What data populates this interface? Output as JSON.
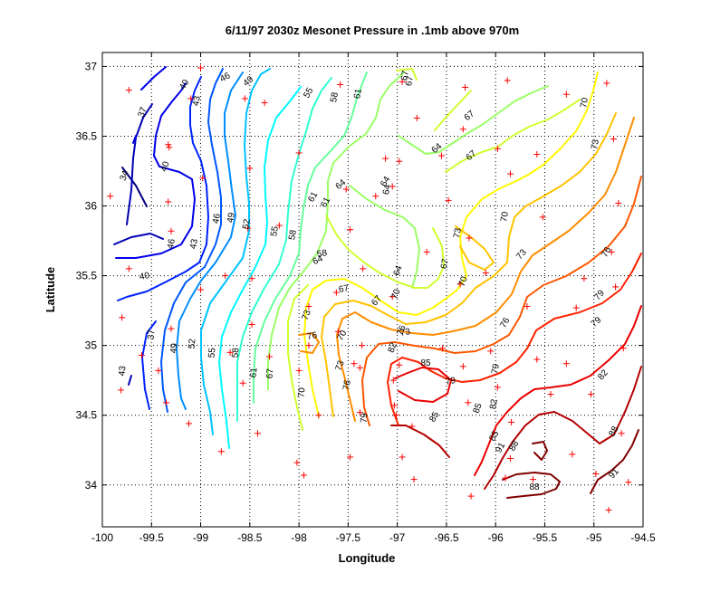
{
  "chart_data": {
    "type": "contour",
    "title": "6/11/97 2030z Mesonet Pressure in .1mb above 970m",
    "xlabel": "Longitude",
    "ylabel": "Latitude",
    "xlim": [
      -100,
      -94.5
    ],
    "ylim": [
      33.7,
      37.1
    ],
    "x_ticks": [
      "-100",
      "-99.5",
      "-99",
      "-98.5",
      "-98",
      "-97.5",
      "-97",
      "-96.5",
      "-96",
      "-95.5",
      "-95",
      "-94.5"
    ],
    "y_ticks": [
      "34",
      "34.5",
      "35",
      "35.5",
      "36",
      "36.5",
      "37"
    ],
    "x_tick_values": [
      -100,
      -99.5,
      -99,
      -98.5,
      -98,
      -97.5,
      -97,
      -96.5,
      -96,
      -95.5,
      -95,
      -94.5
    ],
    "y_tick_values": [
      34,
      34.5,
      35,
      35.5,
      36,
      36.5,
      37
    ],
    "grid": true,
    "grid_style": "dotted",
    "colormap": "jet",
    "contour_levels": [
      34,
      37,
      40,
      43,
      46,
      49,
      52,
      55,
      58,
      61,
      64,
      67,
      70,
      73,
      76,
      79,
      82,
      85,
      88,
      91
    ],
    "station_marker": "+",
    "station_color": "#ff0000",
    "stations": [
      [
        -99.73,
        36.83
      ],
      [
        -99.0,
        36.99
      ],
      [
        -99.1,
        36.77
      ],
      [
        -98.35,
        36.74
      ],
      [
        -98.55,
        36.77
      ],
      [
        -97.58,
        36.87
      ],
      [
        -96.95,
        36.89
      ],
      [
        -96.31,
        36.85
      ],
      [
        -95.88,
        36.9
      ],
      [
        -95.28,
        36.8
      ],
      [
        -94.87,
        36.88
      ],
      [
        -96.8,
        36.63
      ],
      [
        -96.33,
        36.55
      ],
      [
        -95.98,
        36.41
      ],
      [
        -95.58,
        36.37
      ],
      [
        -94.8,
        36.48
      ],
      [
        -99.32,
        36.42
      ],
      [
        -98.0,
        36.38
      ],
      [
        -97.12,
        36.34
      ],
      [
        -96.98,
        36.32
      ],
      [
        -96.55,
        36.36
      ],
      [
        -95.85,
        36.23
      ],
      [
        -98.98,
        36.2
      ],
      [
        -98.5,
        36.27
      ],
      [
        -99.92,
        36.07
      ],
      [
        -99.33,
        36.03
      ],
      [
        -97.52,
        36.12
      ],
      [
        -97.22,
        36.07
      ],
      [
        -97.05,
        36.14
      ],
      [
        -96.48,
        36.04
      ],
      [
        -94.75,
        36.02
      ],
      [
        -95.52,
        35.92
      ],
      [
        -97.48,
        35.83
      ],
      [
        -98.2,
        35.86
      ],
      [
        -98.52,
        35.84
      ],
      [
        -99.3,
        35.82
      ],
      [
        -96.27,
        35.77
      ],
      [
        -96.7,
        35.67
      ],
      [
        -94.82,
        35.67
      ],
      [
        -99.73,
        35.55
      ],
      [
        -98.75,
        35.5
      ],
      [
        -98.48,
        35.48
      ],
      [
        -97.35,
        35.55
      ],
      [
        -96.1,
        35.52
      ],
      [
        -95.1,
        35.48
      ],
      [
        -99.0,
        35.4
      ],
      [
        -97.05,
        35.35
      ],
      [
        -94.78,
        35.42
      ],
      [
        -97.62,
        35.38
      ],
      [
        -96.36,
        35.44
      ],
      [
        -95.68,
        35.28
      ],
      [
        -97.9,
        35.28
      ],
      [
        -99.8,
        35.2
      ],
      [
        -98.48,
        35.15
      ],
      [
        -95.18,
        35.27
      ],
      [
        -99.3,
        35.12
      ],
      [
        -97.6,
        35.1
      ],
      [
        -97.36,
        35.0
      ],
      [
        -97.9,
        35.0
      ],
      [
        -98.7,
        34.95
      ],
      [
        -96.54,
        34.98
      ],
      [
        -96.05,
        34.96
      ],
      [
        -95.58,
        34.9
      ],
      [
        -94.7,
        34.98
      ],
      [
        -98.3,
        34.92
      ],
      [
        -99.6,
        34.93
      ],
      [
        -97.44,
        34.87
      ],
      [
        -96.98,
        34.86
      ],
      [
        -96.33,
        34.85
      ],
      [
        -99.43,
        34.82
      ],
      [
        -98.0,
        34.82
      ],
      [
        -97.38,
        34.84
      ],
      [
        -95.28,
        34.87
      ],
      [
        -97.04,
        34.75
      ],
      [
        -98.57,
        34.73
      ],
      [
        -95.98,
        34.7
      ],
      [
        -99.81,
        34.68
      ],
      [
        -95.03,
        34.65
      ],
      [
        -99.35,
        34.59
      ],
      [
        -97.03,
        34.57
      ],
      [
        -96.28,
        34.59
      ],
      [
        -95.44,
        34.65
      ],
      [
        -97.8,
        34.5
      ],
      [
        -97.38,
        34.52
      ],
      [
        -97.01,
        34.5
      ],
      [
        -99.12,
        34.44
      ],
      [
        -98.42,
        34.37
      ],
      [
        -95.84,
        34.45
      ],
      [
        -96.85,
        34.42
      ],
      [
        -94.72,
        34.37
      ],
      [
        -98.79,
        34.24
      ],
      [
        -97.48,
        34.2
      ],
      [
        -98.02,
        34.16
      ],
      [
        -96.95,
        34.2
      ],
      [
        -95.85,
        34.19
      ],
      [
        -95.22,
        34.22
      ],
      [
        -97.95,
        34.07
      ],
      [
        -96.83,
        34.04
      ],
      [
        -95.9,
        34.05
      ],
      [
        -95.62,
        34.04
      ],
      [
        -94.98,
        34.08
      ],
      [
        -94.65,
        34.02
      ],
      [
        -96.25,
        33.92
      ],
      [
        -94.85,
        33.82
      ],
      [
        -99.33,
        36.44
      ]
    ],
    "contour_label_values": [
      "34",
      "37",
      "40",
      "40",
      "40",
      "43",
      "43",
      "46",
      "46",
      "46",
      "49",
      "49",
      "49",
      "52",
      "52",
      "55",
      "55",
      "55",
      "58",
      "58",
      "58",
      "61",
      "61",
      "61",
      "64",
      "64",
      "64",
      "64",
      "64",
      "67",
      "67",
      "67",
      "67",
      "67",
      "67",
      "67",
      "70",
      "70",
      "70",
      "70",
      "70",
      "70",
      "73",
      "73",
      "73",
      "73",
      "73",
      "73",
      "76",
      "76",
      "76",
      "76",
      "76",
      "79",
      "79",
      "79",
      "79",
      "79",
      "82",
      "82",
      "82",
      "85",
      "85",
      "85",
      "85",
      "88",
      "88",
      "88",
      "91",
      "91",
      "67",
      "43",
      "37",
      "61",
      "58",
      "64"
    ]
  }
}
